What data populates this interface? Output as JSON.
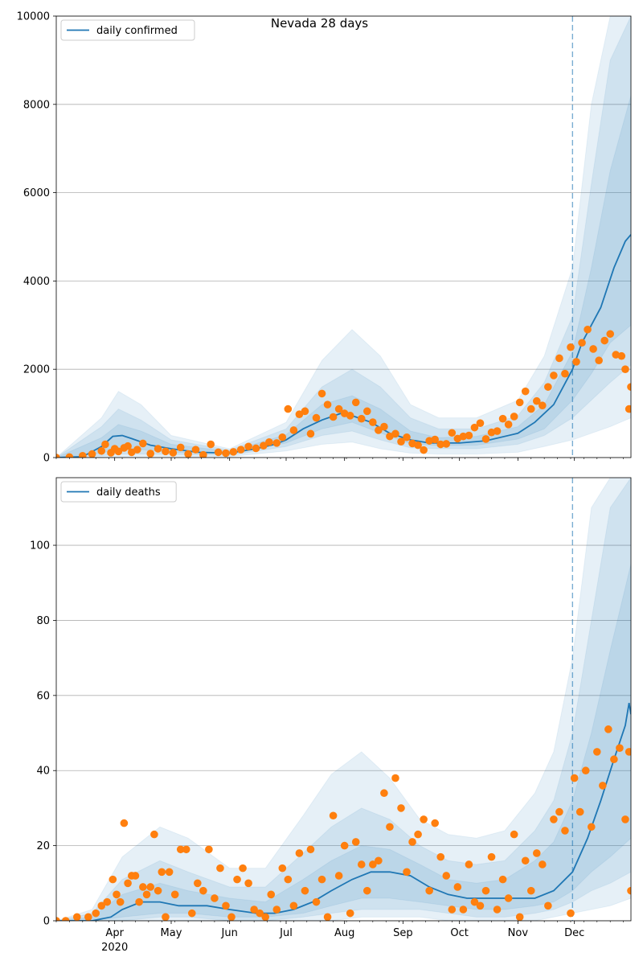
{
  "figure": {
    "title": "Nevada 28 days"
  },
  "colors": {
    "line": "#1f77b4",
    "dots": "#ff7f0e",
    "band": "#1f77b4",
    "grid": "#b0b0b0"
  },
  "x_axis": {
    "month_ticks": [
      "Apr",
      "May",
      "Jun",
      "Jul",
      "Aug",
      "Sep",
      "Oct",
      "Nov",
      "Dec"
    ],
    "year_label": "2020",
    "range": [
      "2020-03-01",
      "2020-12-31"
    ],
    "forecast_start": "2020-11-30"
  },
  "chart_data": [
    {
      "type": "line",
      "legend": "daily confirmed",
      "legend_position": "top-left",
      "ylim": [
        0,
        10000
      ],
      "yticks": [
        0,
        2000,
        4000,
        6000,
        8000,
        10000
      ],
      "grid": "horizontal",
      "series_line": {
        "name": "daily confirmed",
        "x": [
          "2020-03-01",
          "2020-03-15",
          "2020-03-25",
          "2020-03-31",
          "2020-04-05",
          "2020-04-10",
          "2020-04-20",
          "2020-05-01",
          "2020-05-15",
          "2020-06-01",
          "2020-06-15",
          "2020-06-25",
          "2020-07-01",
          "2020-07-10",
          "2020-07-20",
          "2020-07-30",
          "2020-08-05",
          "2020-08-15",
          "2020-08-25",
          "2020-09-05",
          "2020-09-15",
          "2020-10-01",
          "2020-10-15",
          "2020-11-01",
          "2020-11-10",
          "2020-11-20",
          "2020-11-30",
          "2020-12-05",
          "2020-12-15",
          "2020-12-22",
          "2020-12-28",
          "2020-12-31"
        ],
        "y": [
          0,
          20,
          250,
          480,
          500,
          430,
          280,
          200,
          120,
          100,
          200,
          300,
          400,
          650,
          850,
          1000,
          950,
          800,
          550,
          400,
          330,
          330,
          380,
          550,
          800,
          1200,
          2000,
          2600,
          3400,
          4300,
          4900,
          5050
        ]
      },
      "bands": [
        {
          "level": "outer",
          "x": [
            "2020-03-01",
            "2020-03-25",
            "2020-04-03",
            "2020-04-15",
            "2020-05-01",
            "2020-06-01",
            "2020-07-01",
            "2020-07-20",
            "2020-08-05",
            "2020-08-20",
            "2020-09-05",
            "2020-09-20",
            "2020-10-10",
            "2020-11-01",
            "2020-11-15",
            "2020-11-30",
            "2020-12-10",
            "2020-12-20",
            "2020-12-31"
          ],
          "lower": [
            0,
            10,
            20,
            30,
            30,
            20,
            150,
            300,
            350,
            200,
            100,
            80,
            80,
            120,
            250,
            400,
            550,
            700,
            900
          ],
          "upper": [
            0,
            900,
            1500,
            1200,
            500,
            200,
            800,
            2200,
            2900,
            2300,
            1200,
            900,
            900,
            1300,
            2300,
            4300,
            8000,
            10000,
            10000
          ]
        },
        {
          "level": "middle",
          "x": [
            "2020-03-01",
            "2020-03-25",
            "2020-04-03",
            "2020-04-15",
            "2020-05-01",
            "2020-06-01",
            "2020-07-01",
            "2020-07-20",
            "2020-08-05",
            "2020-08-20",
            "2020-09-05",
            "2020-09-20",
            "2020-10-10",
            "2020-11-01",
            "2020-11-15",
            "2020-11-30",
            "2020-12-10",
            "2020-12-20",
            "2020-12-31"
          ],
          "lower": [
            0,
            40,
            80,
            80,
            70,
            50,
            250,
            500,
            600,
            400,
            220,
            200,
            200,
            300,
            500,
            900,
            1300,
            1700,
            2100
          ],
          "upper": [
            0,
            700,
            1100,
            850,
            400,
            170,
            650,
            1600,
            2000,
            1600,
            900,
            650,
            650,
            950,
            1700,
            3200,
            6200,
            9000,
            10000
          ]
        },
        {
          "level": "inner",
          "x": [
            "2020-03-01",
            "2020-03-25",
            "2020-04-03",
            "2020-04-15",
            "2020-05-01",
            "2020-06-01",
            "2020-07-01",
            "2020-07-20",
            "2020-08-05",
            "2020-08-20",
            "2020-09-05",
            "2020-09-20",
            "2020-10-10",
            "2020-11-01",
            "2020-11-15",
            "2020-11-30",
            "2020-12-10",
            "2020-12-20",
            "2020-12-31"
          ],
          "lower": [
            0,
            100,
            200,
            180,
            120,
            80,
            330,
            650,
            800,
            560,
            310,
            270,
            280,
            420,
            650,
            1300,
            1900,
            2600,
            3000
          ],
          "upper": [
            0,
            450,
            750,
            600,
            300,
            140,
            520,
            1200,
            1400,
            1100,
            600,
            450,
            480,
            700,
            1200,
            2400,
            4300,
            6500,
            8200
          ]
        }
      ],
      "scatter": {
        "name": "observed",
        "x": [
          "2020-03-01",
          "2020-03-08",
          "2020-03-15",
          "2020-03-20",
          "2020-03-25",
          "2020-03-27",
          "2020-03-30",
          "2020-04-01",
          "2020-04-03",
          "2020-04-06",
          "2020-04-08",
          "2020-04-10",
          "2020-04-13",
          "2020-04-16",
          "2020-04-20",
          "2020-04-24",
          "2020-04-28",
          "2020-05-02",
          "2020-05-06",
          "2020-05-10",
          "2020-05-14",
          "2020-05-18",
          "2020-05-22",
          "2020-05-26",
          "2020-05-30",
          "2020-06-03",
          "2020-06-07",
          "2020-06-11",
          "2020-06-15",
          "2020-06-19",
          "2020-06-22",
          "2020-06-26",
          "2020-06-29",
          "2020-07-02",
          "2020-07-05",
          "2020-07-08",
          "2020-07-11",
          "2020-07-14",
          "2020-07-17",
          "2020-07-20",
          "2020-07-23",
          "2020-07-26",
          "2020-07-29",
          "2020-08-01",
          "2020-08-04",
          "2020-08-07",
          "2020-08-10",
          "2020-08-13",
          "2020-08-16",
          "2020-08-19",
          "2020-08-22",
          "2020-08-25",
          "2020-08-28",
          "2020-08-31",
          "2020-09-03",
          "2020-09-06",
          "2020-09-09",
          "2020-09-12",
          "2020-09-15",
          "2020-09-18",
          "2020-09-21",
          "2020-09-24",
          "2020-09-27",
          "2020-09-30",
          "2020-10-03",
          "2020-10-06",
          "2020-10-09",
          "2020-10-12",
          "2020-10-15",
          "2020-10-18",
          "2020-10-21",
          "2020-10-24",
          "2020-10-27",
          "2020-10-30",
          "2020-11-02",
          "2020-11-05",
          "2020-11-08",
          "2020-11-11",
          "2020-11-14",
          "2020-11-17",
          "2020-11-20",
          "2020-11-23",
          "2020-11-26",
          "2020-11-29",
          "2020-12-02",
          "2020-12-05",
          "2020-12-08",
          "2020-12-11",
          "2020-12-14",
          "2020-12-17",
          "2020-12-20",
          "2020-12-23",
          "2020-12-26",
          "2020-12-28",
          "2020-12-30",
          "2020-12-31"
        ],
        "y": [
          0,
          10,
          40,
          80,
          150,
          300,
          110,
          200,
          140,
          220,
          260,
          120,
          180,
          320,
          90,
          200,
          140,
          110,
          230,
          80,
          180,
          60,
          300,
          120,
          100,
          130,
          180,
          250,
          210,
          270,
          350,
          330,
          460,
          1100,
          620,
          980,
          1050,
          540,
          900,
          1450,
          1200,
          920,
          1100,
          1000,
          950,
          1250,
          880,
          1050,
          800,
          620,
          700,
          480,
          540,
          360,
          460,
          320,
          280,
          170,
          380,
          410,
          300,
          310,
          560,
          430,
          480,
          500,
          680,
          780,
          420,
          570,
          600,
          880,
          750,
          930,
          1250,
          1500,
          1100,
          1280,
          1180,
          1600,
          1860,
          2250,
          1900,
          2500,
          2170,
          2600,
          2900,
          2460,
          2200,
          2650,
          2800,
          2330,
          2300,
          2000,
          1100,
          1600
        ]
      }
    },
    {
      "type": "line",
      "legend": "daily deaths",
      "legend_position": "top-left",
      "ylim": [
        0,
        118
      ],
      "yticks": [
        0,
        20,
        40,
        60,
        80,
        100
      ],
      "grid": "horizontal",
      "series_line": {
        "name": "daily deaths",
        "x": [
          "2020-03-01",
          "2020-03-20",
          "2020-03-30",
          "2020-04-05",
          "2020-04-15",
          "2020-04-25",
          "2020-05-05",
          "2020-05-20",
          "2020-06-01",
          "2020-06-15",
          "2020-06-25",
          "2020-07-05",
          "2020-07-15",
          "2020-07-25",
          "2020-08-05",
          "2020-08-15",
          "2020-08-25",
          "2020-09-05",
          "2020-09-15",
          "2020-09-25",
          "2020-10-05",
          "2020-10-20",
          "2020-11-01",
          "2020-11-10",
          "2020-11-20",
          "2020-11-30",
          "2020-12-08",
          "2020-12-15",
          "2020-12-22",
          "2020-12-28",
          "2020-12-30",
          "2020-12-31"
        ],
        "y": [
          0,
          0,
          1,
          3,
          5,
          5,
          4,
          4,
          3,
          2,
          2,
          3,
          5,
          8,
          11,
          13,
          13,
          12,
          9,
          7,
          6,
          6,
          6,
          6,
          8,
          13,
          22,
          32,
          43,
          52,
          58,
          55
        ]
      },
      "bands": [
        {
          "level": "outer",
          "x": [
            "2020-03-01",
            "2020-03-20",
            "2020-04-05",
            "2020-04-25",
            "2020-05-10",
            "2020-06-01",
            "2020-06-20",
            "2020-07-10",
            "2020-07-25",
            "2020-08-10",
            "2020-08-25",
            "2020-09-10",
            "2020-09-25",
            "2020-10-10",
            "2020-10-25",
            "2020-11-10",
            "2020-11-20",
            "2020-11-30",
            "2020-12-10",
            "2020-12-20",
            "2020-12-31"
          ],
          "lower": [
            0,
            0,
            0,
            0,
            0,
            0,
            0,
            0,
            0,
            1,
            1,
            1,
            0,
            0,
            0,
            0,
            1,
            2,
            3,
            4,
            6
          ],
          "upper": [
            0,
            3,
            17,
            25,
            22,
            14,
            14,
            28,
            39,
            45,
            38,
            27,
            23,
            22,
            24,
            34,
            45,
            70,
            110,
            118,
            118
          ]
        },
        {
          "level": "middle",
          "x": [
            "2020-03-01",
            "2020-03-20",
            "2020-04-05",
            "2020-04-25",
            "2020-05-10",
            "2020-06-01",
            "2020-06-20",
            "2020-07-10",
            "2020-07-25",
            "2020-08-10",
            "2020-08-25",
            "2020-09-10",
            "2020-09-25",
            "2020-10-10",
            "2020-10-25",
            "2020-11-10",
            "2020-11-20",
            "2020-11-30",
            "2020-12-10",
            "2020-12-20",
            "2020-12-31"
          ],
          "lower": [
            0,
            0,
            0,
            1,
            1,
            0,
            0,
            1,
            2,
            3,
            3,
            3,
            2,
            1,
            1,
            2,
            3,
            5,
            8,
            10,
            13
          ],
          "upper": [
            0,
            2,
            11,
            16,
            13,
            9,
            9,
            18,
            25,
            30,
            27,
            20,
            16,
            15,
            16,
            24,
            32,
            50,
            80,
            110,
            118
          ]
        },
        {
          "level": "inner",
          "x": [
            "2020-03-01",
            "2020-03-20",
            "2020-04-05",
            "2020-04-25",
            "2020-05-10",
            "2020-06-01",
            "2020-06-20",
            "2020-07-10",
            "2020-07-25",
            "2020-08-10",
            "2020-08-25",
            "2020-09-10",
            "2020-09-25",
            "2020-10-10",
            "2020-10-25",
            "2020-11-10",
            "2020-11-20",
            "2020-11-30",
            "2020-12-10",
            "2020-12-20",
            "2020-12-31"
          ],
          "lower": [
            0,
            0,
            1,
            2,
            2,
            1,
            1,
            2,
            4,
            6,
            6,
            5,
            4,
            3,
            3,
            4,
            5,
            8,
            13,
            17,
            22
          ],
          "upper": [
            0,
            1,
            7,
            10,
            8,
            6,
            5,
            11,
            16,
            20,
            19,
            15,
            11,
            10,
            11,
            16,
            21,
            32,
            50,
            72,
            95
          ]
        }
      ],
      "scatter": {
        "name": "observed",
        "x": [
          "2020-03-01",
          "2020-03-06",
          "2020-03-12",
          "2020-03-18",
          "2020-03-22",
          "2020-03-25",
          "2020-03-28",
          "2020-03-31",
          "2020-04-02",
          "2020-04-04",
          "2020-04-06",
          "2020-04-08",
          "2020-04-10",
          "2020-04-12",
          "2020-04-14",
          "2020-04-16",
          "2020-04-18",
          "2020-04-20",
          "2020-04-22",
          "2020-04-24",
          "2020-04-26",
          "2020-04-28",
          "2020-04-30",
          "2020-05-03",
          "2020-05-06",
          "2020-05-09",
          "2020-05-12",
          "2020-05-15",
          "2020-05-18",
          "2020-05-21",
          "2020-05-24",
          "2020-05-27",
          "2020-05-30",
          "2020-06-02",
          "2020-06-05",
          "2020-06-08",
          "2020-06-11",
          "2020-06-14",
          "2020-06-17",
          "2020-06-20",
          "2020-06-23",
          "2020-06-26",
          "2020-06-29",
          "2020-07-02",
          "2020-07-05",
          "2020-07-08",
          "2020-07-11",
          "2020-07-14",
          "2020-07-17",
          "2020-07-20",
          "2020-07-23",
          "2020-07-26",
          "2020-07-29",
          "2020-08-01",
          "2020-08-04",
          "2020-08-07",
          "2020-08-10",
          "2020-08-13",
          "2020-08-16",
          "2020-08-19",
          "2020-08-22",
          "2020-08-25",
          "2020-08-28",
          "2020-08-31",
          "2020-09-03",
          "2020-09-06",
          "2020-09-09",
          "2020-09-12",
          "2020-09-15",
          "2020-09-18",
          "2020-09-21",
          "2020-09-24",
          "2020-09-27",
          "2020-09-30",
          "2020-10-03",
          "2020-10-06",
          "2020-10-09",
          "2020-10-12",
          "2020-10-15",
          "2020-10-18",
          "2020-10-21",
          "2020-10-24",
          "2020-10-27",
          "2020-10-30",
          "2020-11-02",
          "2020-11-05",
          "2020-11-08",
          "2020-11-11",
          "2020-11-14",
          "2020-11-17",
          "2020-11-20",
          "2020-11-23",
          "2020-11-26",
          "2020-11-29",
          "2020-12-01",
          "2020-12-04",
          "2020-12-07",
          "2020-12-10",
          "2020-12-13",
          "2020-12-16",
          "2020-12-19",
          "2020-12-22",
          "2020-12-25",
          "2020-12-28",
          "2020-12-30",
          "2020-12-31"
        ],
        "y": [
          0,
          0,
          1,
          1,
          2,
          4,
          5,
          11,
          7,
          5,
          26,
          10,
          12,
          12,
          5,
          9,
          7,
          9,
          23,
          8,
          13,
          1,
          13,
          7,
          19,
          19,
          2,
          10,
          8,
          19,
          6,
          14,
          4,
          1,
          11,
          14,
          10,
          3,
          2,
          1,
          7,
          3,
          14,
          11,
          4,
          18,
          8,
          19,
          5,
          11,
          1,
          28,
          12,
          20,
          2,
          21,
          15,
          8,
          15,
          16,
          34,
          25,
          38,
          30,
          13,
          21,
          23,
          27,
          8,
          26,
          17,
          12,
          3,
          9,
          3,
          15,
          5,
          4,
          8,
          17,
          3,
          11,
          6,
          23,
          1,
          16,
          8,
          18,
          15,
          4,
          27,
          29,
          24,
          2,
          38,
          29,
          40,
          25,
          45,
          36,
          51,
          43,
          46,
          27,
          45,
          8
        ]
      }
    }
  ]
}
